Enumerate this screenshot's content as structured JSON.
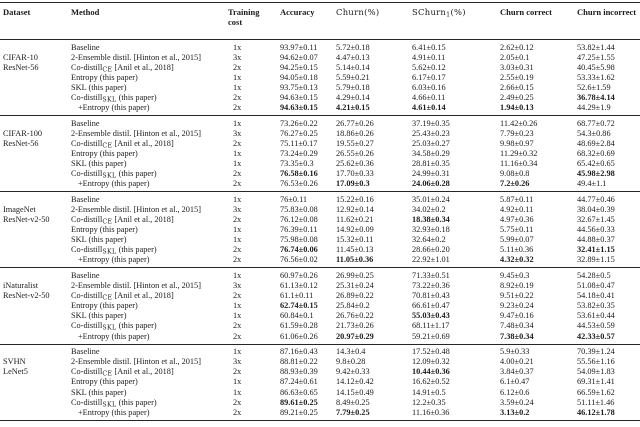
{
  "table": {
    "headers": [
      {
        "key": "dataset",
        "label": "Dataset",
        "bold": true
      },
      {
        "key": "method",
        "label": "Method",
        "bold": true
      },
      {
        "key": "training-cost",
        "label": "Training\ncost",
        "bold": true
      },
      {
        "key": "accuracy",
        "label": "Accuracy",
        "bold": true
      },
      {
        "key": "churn",
        "label": "Churn(%)",
        "math": true
      },
      {
        "key": "schurn1",
        "label": "SChurn",
        "sub": "1",
        "after": "(%)",
        "math": true
      },
      {
        "key": "churn-correct",
        "label": "Churn correct",
        "bold": true
      },
      {
        "key": "churn-incorrect",
        "label": "Churn incorrect",
        "bold": true
      }
    ],
    "groups": [
      {
        "dataset_line1": "CIFAR-10",
        "dataset_line2": "ResNet-56",
        "rows": [
          {
            "method": "Baseline",
            "cost": "1x",
            "values": [
              "93.97±0.11",
              "5.72±0.18",
              "6.41±0.15",
              "2.62±0.12",
              "53.82±1.44"
            ]
          },
          {
            "method": "2-Ensemble distil. [Hinton et al., 2015]",
            "cost": "3x",
            "values": [
              "94.62±0.07",
              "4.47±0.13",
              "4.91±0.11",
              "2.05±0.1",
              "47.25±1.55"
            ]
          },
          {
            "method_pre": "Co-distill",
            "method_sub": "CE",
            "method_post": " [Anil et al., 2018]",
            "cost": "2x",
            "values": [
              "94.25±0.15",
              "5.14±0.14",
              "5.62±0.12",
              "3.03±0.31",
              "40.45±5.98"
            ]
          },
          {
            "method": "Entropy (this paper)",
            "cost": "1x",
            "values": [
              "94.05±0.18",
              "5.59±0.21",
              "6.17±0.17",
              "2.55±0.19",
              "53.33±1.62"
            ]
          },
          {
            "method": "SKL (this paper)",
            "cost": "1x",
            "values": [
              "93.75±0.13",
              "5.79±0.18",
              "6.03±0.16",
              "2.66±0.15",
              "52.6±1.59"
            ]
          },
          {
            "method_pre": "Co-distill",
            "method_sub": "SKL",
            "method_post": " (this paper)",
            "cost": "2x",
            "values": [
              "94.63±0.15",
              "4.29±0.14",
              "4.66±0.11",
              "2.49±0.25",
              "36.78±4.14"
            ],
            "bold": [
              false,
              false,
              false,
              false,
              true
            ]
          },
          {
            "method": "+Entropy (this paper)",
            "indent": true,
            "cost": "2x",
            "values": [
              "94.63±0.15",
              "4.21±0.15",
              "4.61±0.14",
              "1.94±0.13",
              "44.29±1.9"
            ],
            "bold": [
              true,
              true,
              true,
              true,
              false
            ]
          }
        ]
      },
      {
        "dataset_line1": "CIFAR-100",
        "dataset_line2": "ResNet-56",
        "rows": [
          {
            "method": "Baseline",
            "cost": "1x",
            "values": [
              "73.26±0.22",
              "26.77±0.26",
              "37.19±0.35",
              "11.42±0.26",
              "68.77±0.72"
            ]
          },
          {
            "method": "2-Ensemble distil. [Hinton et al., 2015]",
            "cost": "3x",
            "values": [
              "76.27±0.25",
              "18.86±0.26",
              "25.43±0.23",
              "7.79±0.23",
              "54.3±0.86"
            ]
          },
          {
            "method_pre": "Co-distill",
            "method_sub": "CE",
            "method_post": " [Anil et al., 2018]",
            "cost": "2x",
            "values": [
              "75.11±0.17",
              "19.55±0.27",
              "25.03±0.27",
              "9.98±0.97",
              "48.69±2.84"
            ]
          },
          {
            "method": "Entropy (this paper)",
            "cost": "1x",
            "values": [
              "73.24±0.29",
              "26.55±0.26",
              "34.58±0.29",
              "11.29±0.32",
              "68.32±0.69"
            ]
          },
          {
            "method": "SKL (this paper)",
            "cost": "1x",
            "values": [
              "73.35±0.3",
              "25.62±0.36",
              "28.81±0.35",
              "11.16±0.34",
              "65.42±0.65"
            ]
          },
          {
            "method_pre": "Co-distill",
            "method_sub": "SKL",
            "method_post": " (this paper)",
            "cost": "2x",
            "values": [
              "76.58±0.16",
              "17.70±0.33",
              "24.99±0.31",
              "9.08±0.8",
              "45.98±2.98"
            ],
            "bold": [
              true,
              false,
              false,
              false,
              true
            ]
          },
          {
            "method": "+Entropy (this paper)",
            "indent": true,
            "cost": "2x",
            "values": [
              "76.53±0.26",
              "17.09±0.3",
              "24.06±0.28",
              "7.2±0.26",
              "49.4±1.1"
            ],
            "bold": [
              false,
              true,
              true,
              true,
              false
            ]
          }
        ]
      },
      {
        "dataset_line1": "ImageNet",
        "dataset_line2": "ResNet-v2-50",
        "rows": [
          {
            "method": "Baseline",
            "cost": "1x",
            "values": [
              "76±0.11",
              "15.22±0.16",
              "35.01±0.24",
              "5.87±0.11",
              "44.77±0.46"
            ]
          },
          {
            "method": "2-Ensemble distil. [Hinton et al., 2015]",
            "cost": "3x",
            "values": [
              "75.83±0.08",
              "12.92±0.14",
              "34.02±0.2",
              "4.92±0.11",
              "38.04±0.39"
            ]
          },
          {
            "method_pre": "Co-distill",
            "method_sub": "CE",
            "method_post": " [Anil et al., 2018]",
            "cost": "2x",
            "values": [
              "76.12±0.08",
              "11.62±0.21",
              "18.38±0.34",
              "4.97±0.36",
              "32.67±1.45"
            ],
            "bold": [
              false,
              false,
              true,
              false,
              false
            ]
          },
          {
            "method": "Entropy (this paper)",
            "cost": "1x",
            "values": [
              "76.39±0.11",
              "14.92±0.09",
              "32.93±0.18",
              "5.75±0.11",
              "44.56±0.33"
            ]
          },
          {
            "method": "SKL (this paper)",
            "cost": "1x",
            "values": [
              "75.98±0.08",
              "15.32±0.11",
              "32.64±0.2",
              "5.99±0.07",
              "44.88±0.37"
            ]
          },
          {
            "method_pre": "Co-distill",
            "method_sub": "SKL",
            "method_post": " (this paper)",
            "cost": "2x",
            "values": [
              "76.74±0.06",
              "11.45±0.13",
              "28.66±0.20",
              "5.11±0.36",
              "32.41±1.15"
            ],
            "bold": [
              true,
              false,
              false,
              false,
              true
            ]
          },
          {
            "method": "+Entropy (this paper)",
            "indent": true,
            "cost": "2x",
            "values": [
              "76.56±0.02",
              "11.05±0.36",
              "22.92±1.01",
              "4.32±0.32",
              "32.89±1.15"
            ],
            "bold": [
              false,
              true,
              false,
              true,
              false
            ]
          }
        ]
      },
      {
        "dataset_line1": "iNaturalist",
        "dataset_line2": "ResNet-v2-50",
        "rows": [
          {
            "method": "Baseline",
            "cost": "1x",
            "values": [
              "60.97±0.26",
              "26.99±0.25",
              "71.33±0.51",
              "9.45±0.3",
              "54.28±0.5"
            ]
          },
          {
            "method": "2-Ensemble distil. [Hinton et al., 2015]",
            "cost": "3x",
            "values": [
              "61.13±0.12",
              "25.31±0.24",
              "73.22±0.36",
              "8.92±0.19",
              "51.08±0.47"
            ]
          },
          {
            "method_pre": "Co-distill",
            "method_sub": "CE",
            "method_post": " [Anil et al., 2018]",
            "cost": "2x",
            "values": [
              "61.1±0.11",
              "26.89±0.22",
              "70.81±0.43",
              "9.51±0.22",
              "54.18±0.41"
            ]
          },
          {
            "method": "Entropy (this paper)",
            "cost": "1x",
            "values": [
              "62.74±0.15",
              "25.84±0.2",
              "66.61±0.47",
              "9.23±0.24",
              "53.82±0.35"
            ],
            "bold": [
              true,
              false,
              false,
              false,
              false
            ]
          },
          {
            "method": "SKL (this paper)",
            "cost": "1x",
            "values": [
              "60.84±0.1",
              "26.76±0.22",
              "55.03±0.43",
              "9.47±0.16",
              "53.61±0.44"
            ],
            "bold": [
              false,
              false,
              true,
              false,
              false
            ]
          },
          {
            "method_pre": "Co-distill",
            "method_sub": "SKL",
            "method_post": " (this paper)",
            "cost": "2x",
            "values": [
              "61.59±0.28",
              "21.73±0.26",
              "68.11±1.17",
              "7.48±0.34",
              "44.53±0.59"
            ]
          },
          {
            "method": "+Entropy (this paper)",
            "indent": true,
            "cost": "2x",
            "values": [
              "61.06±0.26",
              "20.97±0.29",
              "59.21±0.69",
              "7.38±0.34",
              "42.33±0.57"
            ],
            "bold": [
              false,
              true,
              false,
              true,
              true
            ]
          }
        ]
      },
      {
        "dataset_line1": "SVHN",
        "dataset_line2": "LeNet5",
        "rows": [
          {
            "method": "Baseline",
            "cost": "1x",
            "values": [
              "87.16±0.43",
              "14.3±0.4",
              "17.52±0.48",
              "5.9±0.33",
              "70.39±1.24"
            ]
          },
          {
            "method": "2-Ensemble distil. [Hinton et al., 2015]",
            "cost": "3x",
            "values": [
              "88.81±0.22",
              "9.8±0.28",
              "12.09±0.32",
              "4.00±0.21",
              "55.56±1.16"
            ]
          },
          {
            "method_pre": "Co-distill",
            "method_sub": "CE",
            "method_post": " [Anil et al., 2018]",
            "cost": "2x",
            "values": [
              "88.93±0.39",
              "9.42±0.33",
              "10.44±0.36",
              "3.84±0.37",
              "54.09±1.83"
            ],
            "bold": [
              false,
              false,
              true,
              false,
              false
            ]
          },
          {
            "method": "Entropy (this paper)",
            "cost": "1x",
            "values": [
              "87.24±0.61",
              "14.12±0.42",
              "16.62±0.52",
              "6.1±0.47",
              "69.31±1.41"
            ]
          },
          {
            "method": "SKL (this paper)",
            "cost": "1x",
            "values": [
              "86.63±0.65",
              "14.15±0.49",
              "14.91±0.5",
              "6.12±0.6",
              "66.59±1.62"
            ]
          },
          {
            "method_pre": "Co-distill",
            "method_sub": "SKL",
            "method_post": " (this paper)",
            "cost": "2x",
            "values": [
              "89.61±0.25",
              "8.49±0.25",
              "12.2±0.35",
              "3.59±0.24",
              "51.11±1.46"
            ],
            "bold": [
              true,
              false,
              false,
              false,
              false
            ]
          },
          {
            "method": "+Entropy (this paper)",
            "indent": true,
            "cost": "2x",
            "values": [
              "89.21±0.25",
              "7.79±0.25",
              "11.16±0.36",
              "3.13±0.2",
              "46.12±1.78"
            ],
            "bold": [
              false,
              true,
              false,
              true,
              true
            ]
          }
        ]
      }
    ]
  }
}
